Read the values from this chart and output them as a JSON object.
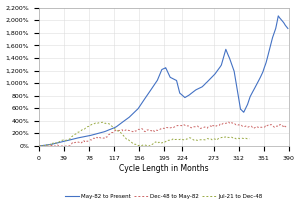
{
  "title": "",
  "xlabel": "Cycle Length in Months",
  "ylabel": "",
  "xlim": [
    0,
    390
  ],
  "ylim": [
    0,
    2200
  ],
  "xticks": [
    0,
    39,
    78,
    117,
    156,
    195,
    224,
    273,
    312,
    351,
    390
  ],
  "yticks": [
    0,
    200,
    400,
    600,
    800,
    1000,
    1200,
    1400,
    1600,
    1800,
    2000,
    2200
  ],
  "legend": [
    "May-82 to Present",
    "Dec-48 to May-82",
    "Jul-21 to Dec-48"
  ],
  "line_colors": [
    "#4472C4",
    "#CC6666",
    "#99AA44"
  ],
  "background_color": "#FFFFFF",
  "grid_color": "#DDDDDD"
}
